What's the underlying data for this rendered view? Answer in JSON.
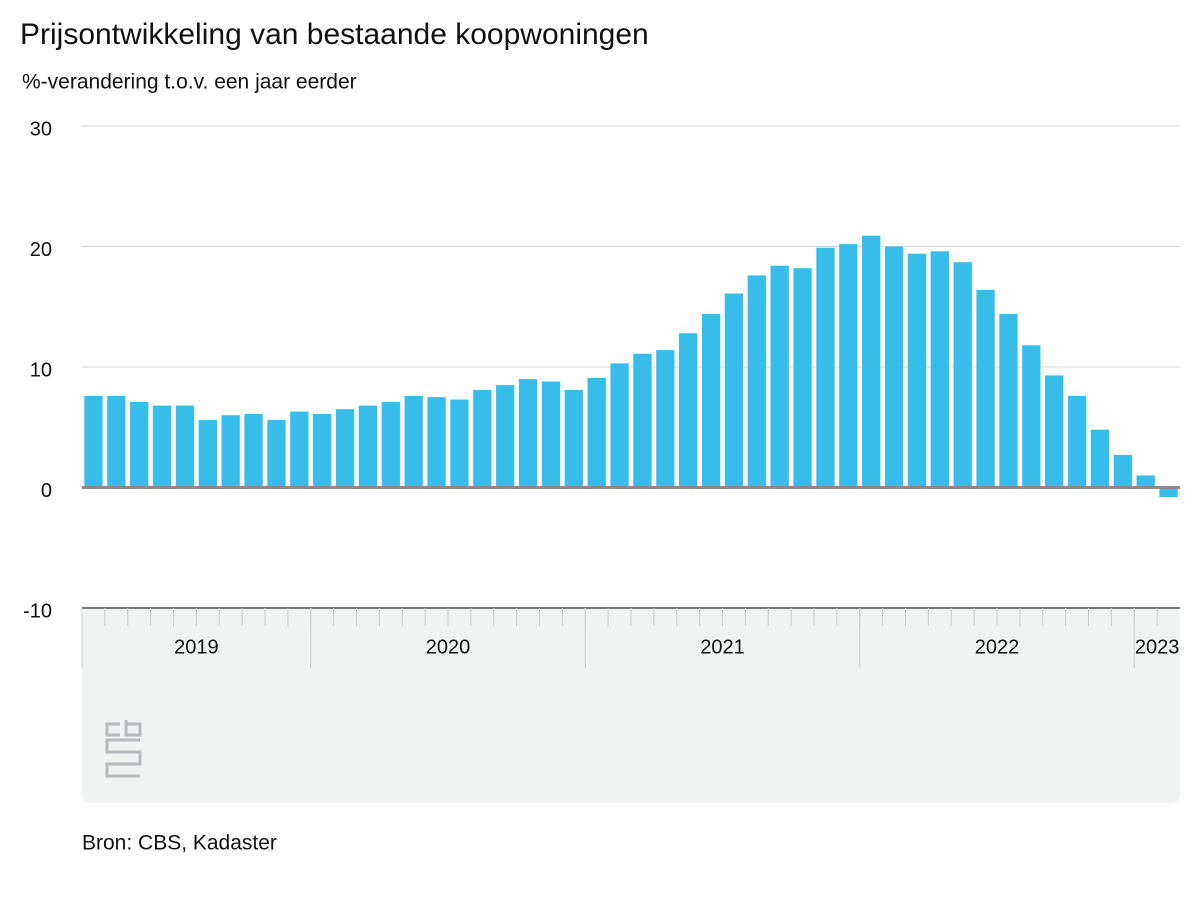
{
  "chart_data": {
    "type": "bar",
    "title": "Prijsontwikkeling van bestaande koopwoningen",
    "subtitle": "%-verandering t.o.v. een jaar eerder",
    "source": "Bron: CBS, Kadaster",
    "categories": [
      null,
      null,
      null,
      null,
      null,
      null,
      null,
      null,
      null,
      null,
      null,
      null,
      null,
      null,
      null,
      null,
      null,
      null,
      null,
      null,
      null,
      null,
      null,
      null,
      null,
      null,
      null,
      null,
      null,
      null,
      null,
      null,
      null,
      null,
      null,
      null,
      null,
      null,
      null,
      null,
      null,
      null,
      null,
      null,
      null,
      null,
      null,
      null
    ],
    "values": [
      7.6,
      7.6,
      7.1,
      6.8,
      6.8,
      5.6,
      6.0,
      6.1,
      5.6,
      6.3,
      6.1,
      6.5,
      6.8,
      7.1,
      7.6,
      7.5,
      7.3,
      8.1,
      8.5,
      9.0,
      8.8,
      8.1,
      9.1,
      10.3,
      11.1,
      11.4,
      12.8,
      14.4,
      16.1,
      17.6,
      18.4,
      18.2,
      19.9,
      20.2,
      20.9,
      20.0,
      19.4,
      19.6,
      18.7,
      16.4,
      14.4,
      11.8,
      9.3,
      7.6,
      4.8,
      2.7,
      1.0,
      -0.8
    ],
    "groups": [
      {
        "label": "2019",
        "count": 10
      },
      {
        "label": "2020",
        "count": 12
      },
      {
        "label": "2021",
        "count": 12
      },
      {
        "label": "2022",
        "count": 12
      },
      {
        "label": "2023",
        "count": 2
      }
    ],
    "color": "#36bdea",
    "ylim": [
      -10,
      30
    ],
    "yticks": [
      -10,
      0,
      10,
      20,
      30
    ],
    "grid": true
  }
}
